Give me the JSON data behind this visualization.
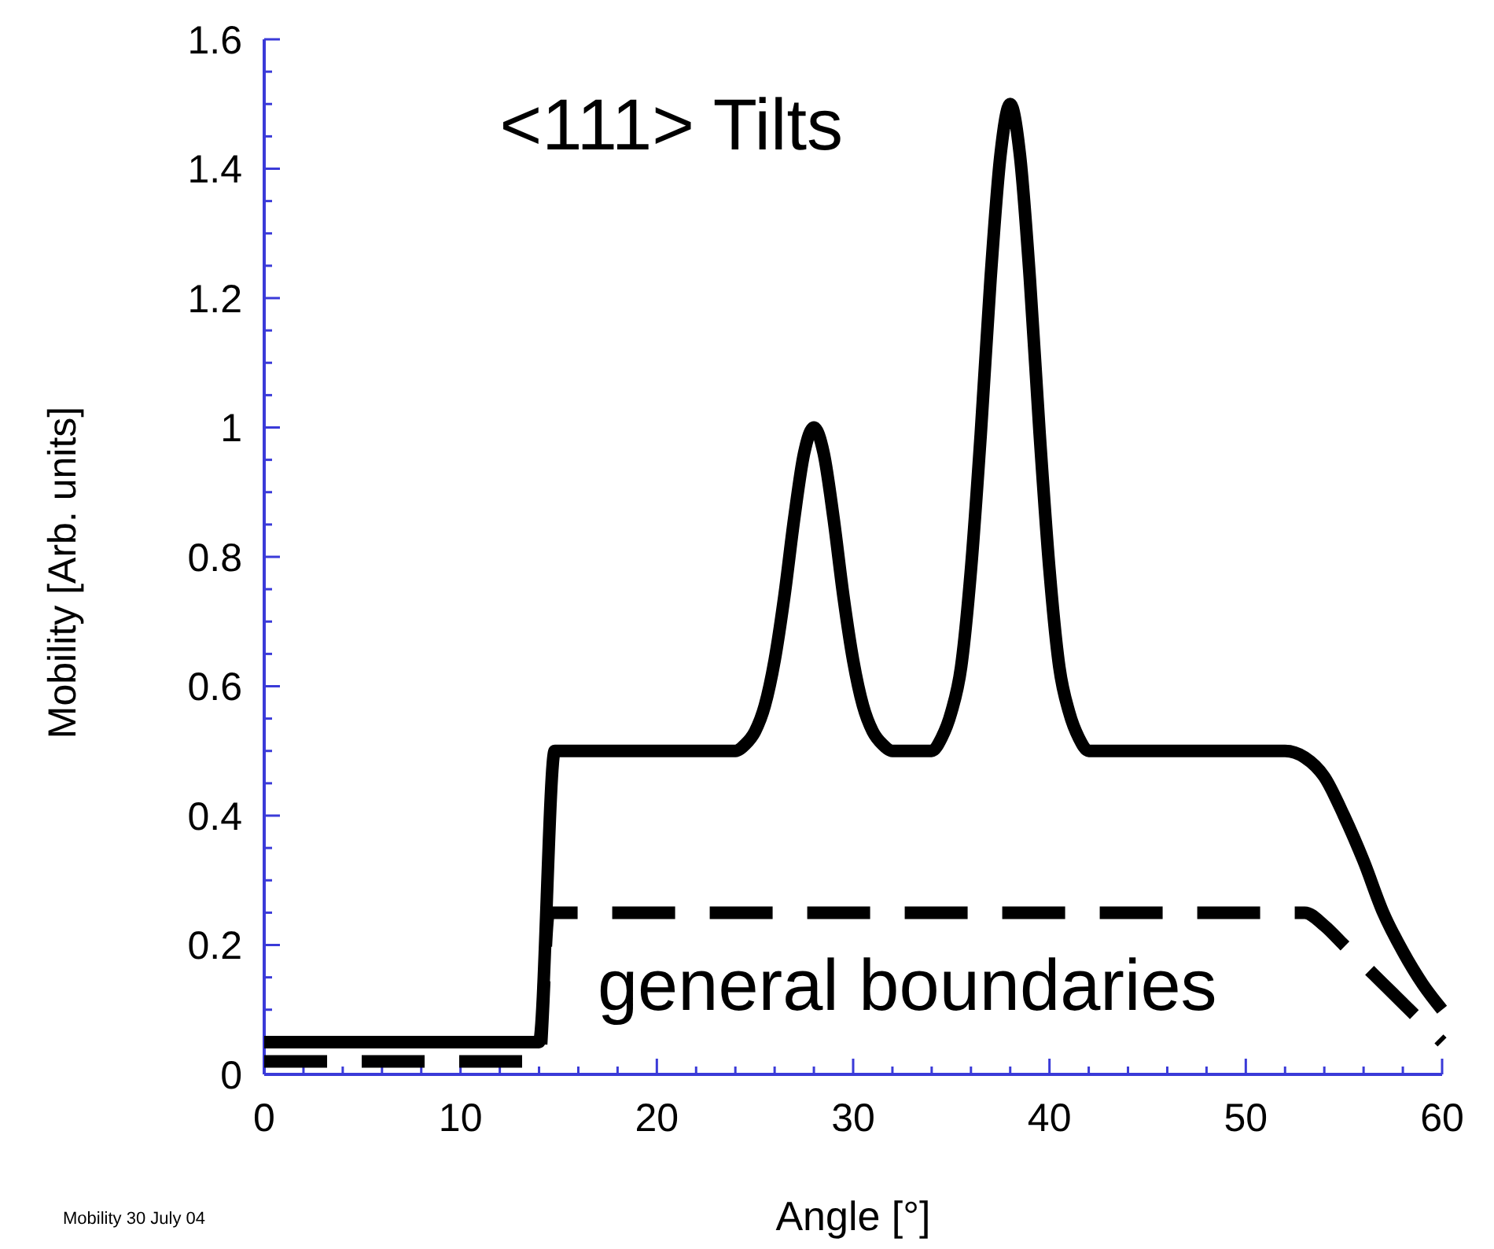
{
  "chart_data": {
    "type": "line",
    "xlabel": "Angle [°]",
    "ylabel": "Mobility [Arb. units]",
    "annotations": [
      "Mobility  30 July 04"
    ],
    "xlim": [
      0,
      60
    ],
    "ylim": [
      0,
      1.6
    ],
    "xticks": [
      0,
      {
        "value": 2,
        "label": null
      },
      {
        "value": 4,
        "label": null
      },
      {
        "value": 6,
        "label": null
      },
      {
        "value": 8,
        "label": null
      },
      10,
      {
        "value": 12,
        "label": null
      },
      {
        "value": 14,
        "label": null
      },
      {
        "value": 16,
        "label": null
      },
      {
        "value": 18,
        "label": null
      },
      20,
      {
        "value": 22,
        "label": null
      },
      {
        "value": 24,
        "label": null
      },
      {
        "value": 26,
        "label": null
      },
      {
        "value": 28,
        "label": null
      },
      30,
      {
        "value": 32,
        "label": null
      },
      {
        "value": 34,
        "label": null
      },
      {
        "value": 36,
        "label": null
      },
      {
        "value": 38,
        "label": null
      },
      40,
      {
        "value": 42,
        "label": null
      },
      {
        "value": 44,
        "label": null
      },
      {
        "value": 46,
        "label": null
      },
      {
        "value": 48,
        "label": null
      },
      50,
      {
        "value": 52,
        "label": null
      },
      {
        "value": 54,
        "label": null
      },
      {
        "value": 56,
        "label": null
      },
      {
        "value": 58,
        "label": null
      },
      60
    ],
    "yticks": [
      0,
      {
        "value": 0.05,
        "label": null
      },
      {
        "value": 0.1,
        "label": null
      },
      {
        "value": 0.15,
        "label": null
      },
      0.2,
      {
        "value": 0.25,
        "label": null
      },
      {
        "value": 0.3,
        "label": null
      },
      {
        "value": 0.35,
        "label": null
      },
      0.4,
      {
        "value": 0.45,
        "label": null
      },
      {
        "value": 0.5,
        "label": null
      },
      {
        "value": 0.55,
        "label": null
      },
      0.6,
      {
        "value": 0.65,
        "label": null
      },
      {
        "value": 0.7,
        "label": null
      },
      {
        "value": 0.75,
        "label": null
      },
      0.8,
      {
        "value": 0.85,
        "label": null
      },
      {
        "value": 0.9,
        "label": null
      },
      {
        "value": 0.95,
        "label": null
      },
      1,
      {
        "value": 1.05,
        "label": null
      },
      {
        "value": 1.1,
        "label": null
      },
      {
        "value": 1.15,
        "label": null
      },
      1.2,
      {
        "value": 1.25,
        "label": null
      },
      {
        "value": 1.3,
        "label": null
      },
      {
        "value": 1.35,
        "label": null
      },
      1.4,
      {
        "value": 1.45,
        "label": null
      },
      {
        "value": 1.5,
        "label": null
      },
      {
        "value": 1.55,
        "label": null
      },
      1.6
    ],
    "grid": false,
    "legend": false,
    "marker": "none",
    "series": [
      {
        "name": "<111> Tilts",
        "color": "#000000",
        "line_style": "solid",
        "x": [
          0,
          14,
          14.8,
          24,
          24.5,
          25,
          25.5,
          26,
          26.5,
          27,
          27.5,
          28,
          28.5,
          29,
          29.5,
          30,
          30.5,
          31,
          31.5,
          32,
          34,
          34.5,
          35,
          35.5,
          36,
          36.5,
          37,
          37.5,
          38,
          38.5,
          39,
          39.5,
          40,
          40.5,
          41,
          41.5,
          42,
          52,
          53,
          54,
          55,
          56,
          57,
          58,
          59,
          60
        ],
        "values": [
          0.05,
          0.05,
          0.5,
          0.5,
          0.51,
          0.53,
          0.57,
          0.64,
          0.74,
          0.86,
          0.96,
          1.0,
          0.96,
          0.86,
          0.74,
          0.64,
          0.57,
          0.53,
          0.51,
          0.5,
          0.5,
          0.52,
          0.56,
          0.63,
          0.78,
          0.99,
          1.23,
          1.42,
          1.5,
          1.42,
          1.23,
          0.99,
          0.78,
          0.63,
          0.56,
          0.52,
          0.5,
          0.5,
          0.49,
          0.46,
          0.4,
          0.33,
          0.25,
          0.19,
          0.14,
          0.1
        ]
      },
      {
        "name": "general boundaries",
        "color": "#000000",
        "line_style": "dashed",
        "x": [
          0,
          14,
          14.5,
          53,
          54,
          55,
          56,
          57,
          58,
          59,
          60
        ],
        "values": [
          0.02,
          0.02,
          0.25,
          0.25,
          0.23,
          0.2,
          0.17,
          0.14,
          0.11,
          0.08,
          0.05
        ]
      }
    ]
  }
}
